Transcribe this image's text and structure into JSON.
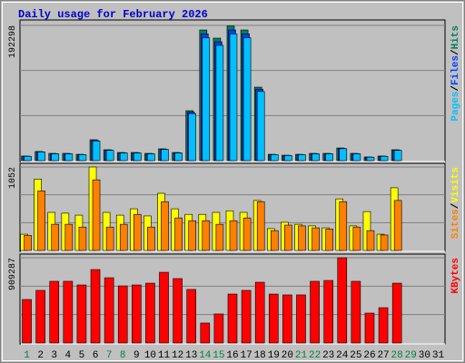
{
  "title": "Daily usage for February 2026",
  "legend_separator": "/",
  "categories": [
    "1",
    "2",
    "3",
    "4",
    "5",
    "6",
    "7",
    "8",
    "9",
    "10",
    "11",
    "12",
    "13",
    "14",
    "15",
    "16",
    "17",
    "18",
    "19",
    "20",
    "21",
    "22",
    "23",
    "24",
    "25",
    "26",
    "27",
    "28",
    "29",
    "30",
    "31"
  ],
  "category_colors": [
    "#008040",
    "#000",
    "#000",
    "#000",
    "#000",
    "#000",
    "#008040",
    "#008040",
    "#000",
    "#000",
    "#000",
    "#000",
    "#000",
    "#008040",
    "#008040",
    "#000",
    "#000",
    "#000",
    "#000",
    "#000",
    "#008040",
    "#008040",
    "#000",
    "#000",
    "#000",
    "#000",
    "#000",
    "#008040",
    "#008040",
    "#000",
    "#000"
  ],
  "chart_data": [
    {
      "type": "bar",
      "ylim": [
        0,
        192298
      ],
      "yticks": [
        192298
      ],
      "series": [
        {
          "name": "Hits",
          "color": "#00805c",
          "values": [
            6500,
            13000,
            10300,
            10300,
            9000,
            29700,
            15500,
            11600,
            11600,
            10300,
            16800,
            11600,
            71000,
            185800,
            174200,
            191500,
            185800,
            104500,
            9000,
            7700,
            9000,
            10300,
            10300,
            18000,
            10300,
            5200,
            6500,
            15500,
            null,
            null,
            null
          ]
        },
        {
          "name": "Files",
          "color": "#0040ff",
          "values": [
            6300,
            12600,
            10000,
            10000,
            8700,
            28800,
            15000,
            11200,
            11200,
            10000,
            16300,
            11200,
            68900,
            180200,
            169000,
            185800,
            180200,
            101400,
            8700,
            7500,
            8700,
            10000,
            10000,
            17500,
            10000,
            5000,
            6300,
            15000,
            null,
            null,
            null
          ]
        },
        {
          "name": "Pages",
          "color": "#00c0ff",
          "values": [
            6100,
            12300,
            9700,
            9700,
            8500,
            28000,
            14600,
            10900,
            10900,
            9700,
            15800,
            10900,
            66800,
            174800,
            163900,
            180200,
            174800,
            98300,
            8500,
            7300,
            8500,
            9700,
            9700,
            17000,
            9700,
            4900,
            6100,
            14600,
            null,
            null,
            null
          ]
        }
      ]
    },
    {
      "type": "bar",
      "ylim": [
        0,
        1052
      ],
      "yticks": [
        1052
      ],
      "series": [
        {
          "name": "Visits",
          "color": "#ffff00",
          "values": [
            205,
            900,
            480,
            470,
            445,
            1052,
            480,
            445,
            525,
            435,
            720,
            525,
            455,
            455,
            480,
            500,
            480,
            630,
            275,
            355,
            330,
            310,
            285,
            650,
            310,
            490,
            205,
            790,
            null,
            null,
            null
          ]
        },
        {
          "name": "Sites",
          "color": "#ff8000",
          "values": [
            190,
            750,
            330,
            330,
            295,
            890,
            295,
            330,
            455,
            295,
            615,
            410,
            375,
            375,
            330,
            375,
            410,
            615,
            250,
            320,
            310,
            285,
            270,
            615,
            295,
            250,
            195,
            630,
            null,
            null,
            null
          ]
        }
      ]
    },
    {
      "type": "bar",
      "ylim": [
        0,
        909287
      ],
      "yticks": [
        909287
      ],
      "series": [
        {
          "name": "KBytes",
          "color": "#ff0000",
          "values": [
            464000,
            561000,
            658000,
            658000,
            619000,
            783000,
            696000,
            609000,
            619000,
            638000,
            754000,
            687000,
            571000,
            213000,
            310000,
            522000,
            561000,
            648000,
            522000,
            513000,
            513000,
            658000,
            667000,
            909287,
            658000,
            319000,
            377000,
            638000,
            null,
            null,
            null
          ]
        }
      ]
    }
  ]
}
